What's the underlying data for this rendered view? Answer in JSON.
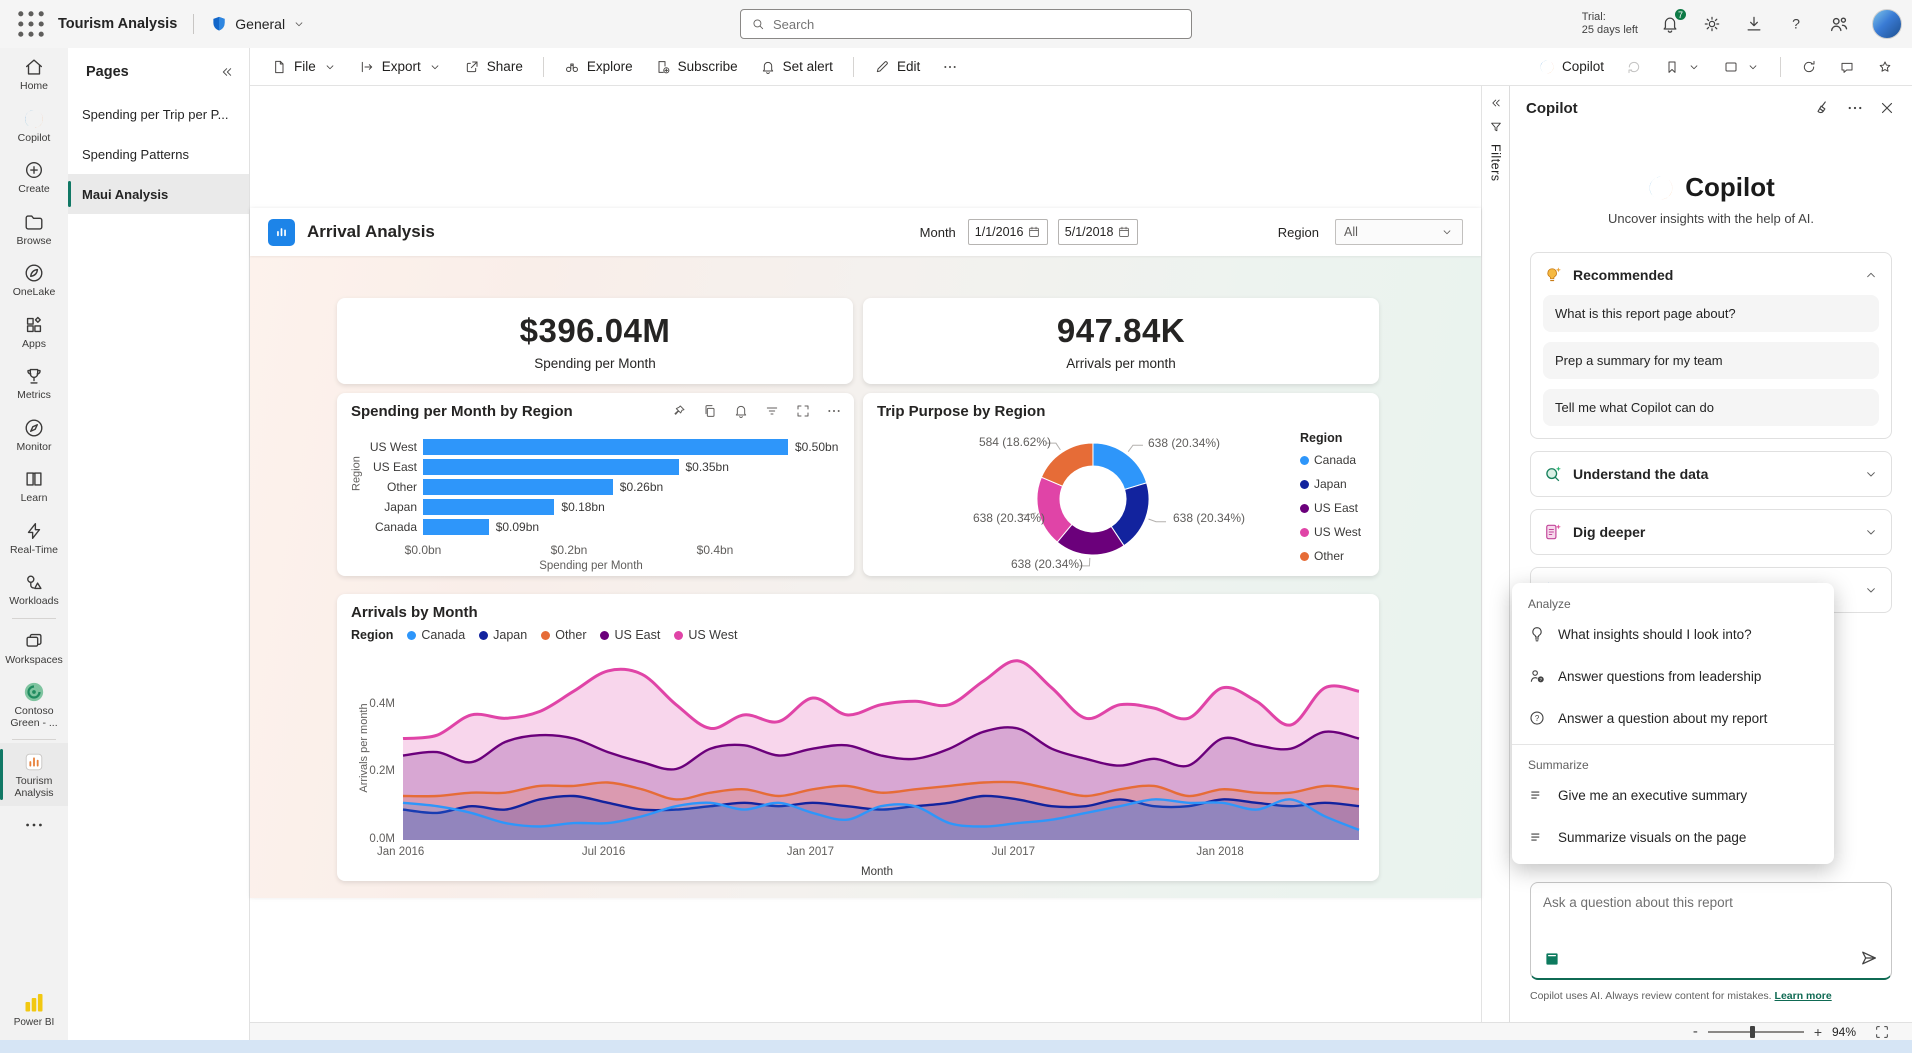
{
  "app_bar": {
    "product_title": "Tourism Analysis",
    "section_label": "General",
    "search_placeholder": "Search",
    "trial_line1": "Trial:",
    "trial_line2": "25 days left",
    "notification_count": "7"
  },
  "nav_rail": {
    "items": [
      {
        "id": "home",
        "label": "Home",
        "icon": "home"
      },
      {
        "id": "copilot",
        "label": "Copilot",
        "icon": "copilot"
      },
      {
        "id": "create",
        "label": "Create",
        "icon": "create"
      },
      {
        "id": "browse",
        "label": "Browse",
        "icon": "browse"
      },
      {
        "id": "onelake",
        "label": "OneLake",
        "icon": "onelake"
      },
      {
        "id": "apps",
        "label": "Apps",
        "icon": "apps"
      },
      {
        "id": "metrics",
        "label": "Metrics",
        "icon": "metrics"
      },
      {
        "id": "monitor",
        "label": "Monitor",
        "icon": "monitor"
      },
      {
        "id": "learn",
        "label": "Learn",
        "icon": "learn"
      },
      {
        "id": "realtime",
        "label": "Real-Time",
        "icon": "realtime"
      },
      {
        "id": "workloads",
        "label": "Workloads",
        "icon": "workloads"
      },
      {
        "divider": true
      },
      {
        "id": "workspaces",
        "label": "Workspaces",
        "icon": "workspaces"
      },
      {
        "id": "contoso",
        "label": "Contoso Green - ...",
        "icon": "contoso"
      },
      {
        "divider": true
      },
      {
        "id": "tourism",
        "label": "Tourism Analysis",
        "icon": "tourism",
        "selected": true
      },
      {
        "id": "more",
        "label": "",
        "icon": "dots"
      }
    ],
    "power_bi_label": "Power BI"
  },
  "pages_panel": {
    "title": "Pages",
    "items": [
      "Spending per Trip per P...",
      "Spending Patterns",
      "Maui Analysis"
    ],
    "selected_index": 2
  },
  "toolbar": {
    "left": [
      {
        "label": "File",
        "icon": "file",
        "chevron": true
      },
      {
        "label": "Export",
        "icon": "export",
        "chevron": true
      },
      {
        "label": "Share",
        "icon": "share"
      },
      {
        "divider": true
      },
      {
        "label": "Explore",
        "icon": "binoculars"
      },
      {
        "label": "Subscribe",
        "icon": "subscribe"
      },
      {
        "label": "Set alert",
        "icon": "bell"
      },
      {
        "divider": true
      },
      {
        "label": "Edit",
        "icon": "pencil"
      },
      {
        "label": "",
        "icon": "dots"
      }
    ],
    "right": [
      {
        "label": "Copilot",
        "icon": "copilot"
      },
      {
        "icon": "reset",
        "faded": true
      },
      {
        "icon": "bookmark",
        "chevron": true
      },
      {
        "icon": "viewrect",
        "chevron": true
      },
      {
        "divider": true
      },
      {
        "icon": "refresh"
      },
      {
        "icon": "comment"
      },
      {
        "icon": "star"
      }
    ]
  },
  "filters_rail": {
    "label": "Filters"
  },
  "report": {
    "title": "Arrival Analysis",
    "month_label": "Month",
    "date_from": "1/1/2016",
    "date_to": "5/1/2018",
    "region_label": "Region",
    "region_value": "All",
    "kpis": [
      {
        "value": "$396.04M",
        "label": "Spending per Month"
      },
      {
        "value": "947.84K",
        "label": "Arrivals per month"
      }
    ]
  },
  "chart_data": [
    {
      "type": "bar",
      "title": "Spending per Month by Region",
      "categories": [
        "US West",
        "US East",
        "Other",
        "Japan",
        "Canada"
      ],
      "values": [
        0.5,
        0.35,
        0.26,
        0.18,
        0.09
      ],
      "data_labels": [
        "$0.50bn",
        "$0.35bn",
        "$0.26bn",
        "$0.18bn",
        "$0.09bn"
      ],
      "xlabel": "Spending per Month",
      "ylabel": "Region",
      "x_ticks": [
        "$0.0bn",
        "$0.2bn",
        "$0.4bn"
      ],
      "x_tick_values": [
        0,
        0.2,
        0.4
      ],
      "xlim": [
        0,
        0.504
      ],
      "bar_color": "#2E96FA"
    },
    {
      "type": "pie",
      "title": "Trip Purpose by Region",
      "legend_title": "Region",
      "slices": [
        {
          "name": "Canada",
          "value": 638,
          "pct": 20.34,
          "label": "638 (20.34%)",
          "color": "#2E96FA"
        },
        {
          "name": "Japan",
          "value": 638,
          "pct": 20.34,
          "label": "638 (20.34%)",
          "color": "#12239E"
        },
        {
          "name": "US East",
          "value": 638,
          "pct": 20.34,
          "label": "638 (20.34%)",
          "color": "#6B007B"
        },
        {
          "name": "US West",
          "value": 638,
          "pct": 20.34,
          "label": "638 (20.34%)",
          "color": "#E044A7"
        },
        {
          "name": "Other",
          "value": 584,
          "pct": 18.62,
          "label": "584 (18.62%)",
          "color": "#E66C37"
        }
      ]
    },
    {
      "type": "area",
      "title": "Arrivals by Month",
      "legend_title": "Region",
      "xlabel": "Month",
      "ylabel": "Arrivals per month",
      "y_ticks": [
        "0.0M",
        "0.2M",
        "0.4M"
      ],
      "y_tick_values": [
        0,
        0.2,
        0.4
      ],
      "ylim": [
        0,
        0.55
      ],
      "x_ticks": [
        "Jan 2016",
        "Jul 2016",
        "Jan 2017",
        "Jul 2017",
        "Jan 2018"
      ],
      "x_tick_indices": [
        0,
        6,
        12,
        18,
        24
      ],
      "series": [
        {
          "name": "Canada",
          "color": "#2E96FA",
          "values": [
            0.11,
            0.1,
            0.08,
            0.05,
            0.04,
            0.05,
            0.05,
            0.07,
            0.1,
            0.11,
            0.09,
            0.11,
            0.08,
            0.06,
            0.1,
            0.1,
            0.05,
            0.04,
            0.05,
            0.06,
            0.08,
            0.1,
            0.12,
            0.11,
            0.11,
            0.09,
            0.12,
            0.07,
            0.03
          ]
        },
        {
          "name": "Japan",
          "color": "#12239E",
          "values": [
            0.09,
            0.08,
            0.1,
            0.09,
            0.12,
            0.13,
            0.11,
            0.09,
            0.09,
            0.1,
            0.11,
            0.1,
            0.11,
            0.1,
            0.09,
            0.1,
            0.11,
            0.13,
            0.12,
            0.1,
            0.1,
            0.12,
            0.1,
            0.1,
            0.12,
            0.11,
            0.1,
            0.11,
            0.1
          ]
        },
        {
          "name": "Other",
          "color": "#E66C37",
          "values": [
            0.13,
            0.13,
            0.14,
            0.14,
            0.16,
            0.16,
            0.17,
            0.15,
            0.12,
            0.14,
            0.15,
            0.13,
            0.15,
            0.16,
            0.14,
            0.15,
            0.16,
            0.17,
            0.17,
            0.15,
            0.13,
            0.15,
            0.16,
            0.13,
            0.15,
            0.14,
            0.14,
            0.16,
            0.15
          ]
        },
        {
          "name": "US East",
          "color": "#6B007B",
          "values": [
            0.25,
            0.26,
            0.23,
            0.29,
            0.31,
            0.3,
            0.26,
            0.23,
            0.21,
            0.27,
            0.28,
            0.25,
            0.27,
            0.28,
            0.25,
            0.24,
            0.27,
            0.32,
            0.33,
            0.27,
            0.24,
            0.22,
            0.24,
            0.22,
            0.3,
            0.28,
            0.27,
            0.32,
            0.3
          ]
        },
        {
          "name": "US West",
          "color": "#E044A7",
          "values": [
            0.3,
            0.31,
            0.37,
            0.36,
            0.38,
            0.44,
            0.5,
            0.49,
            0.4,
            0.33,
            0.37,
            0.35,
            0.42,
            0.37,
            0.4,
            0.41,
            0.4,
            0.47,
            0.53,
            0.45,
            0.36,
            0.4,
            0.39,
            0.36,
            0.45,
            0.41,
            0.34,
            0.45,
            0.44
          ]
        }
      ]
    }
  ],
  "copilot": {
    "header_title": "Copilot",
    "hero_title": "Copilot",
    "hero_subtitle": "Uncover insights with the help of AI.",
    "sections": [
      {
        "icon": "bulb-spark",
        "title": "Recommended",
        "expanded": true,
        "chips": [
          "What is this report page about?",
          "Prep a summary for my team",
          "Tell me what Copilot can do"
        ]
      },
      {
        "icon": "mag-spark",
        "title": "Understand the data"
      },
      {
        "icon": "doc-spark",
        "title": "Dig deeper"
      },
      {
        "icon": "write-spark",
        "title": ""
      }
    ],
    "menu": {
      "groups": [
        {
          "title": "Analyze",
          "items": [
            {
              "icon": "bulb-o",
              "label": "What insights should I look into?"
            },
            {
              "icon": "person-q",
              "label": "Answer questions from leadership"
            },
            {
              "icon": "q-circle",
              "label": "Answer a question about my report"
            }
          ]
        },
        {
          "title": "Summarize",
          "items": [
            {
              "icon": "sum-lines",
              "label": "Give me an executive summary"
            },
            {
              "icon": "sum-lines",
              "label": "Summarize visuals on the page"
            }
          ]
        }
      ]
    },
    "input_placeholder": "Ask a question about this report",
    "footer_text": "Copilot uses AI. Always review content for mistakes.",
    "footer_link": "Learn more"
  },
  "status_bar": {
    "zoom_out": "-",
    "zoom_in": "+",
    "zoom_level": "94%"
  }
}
